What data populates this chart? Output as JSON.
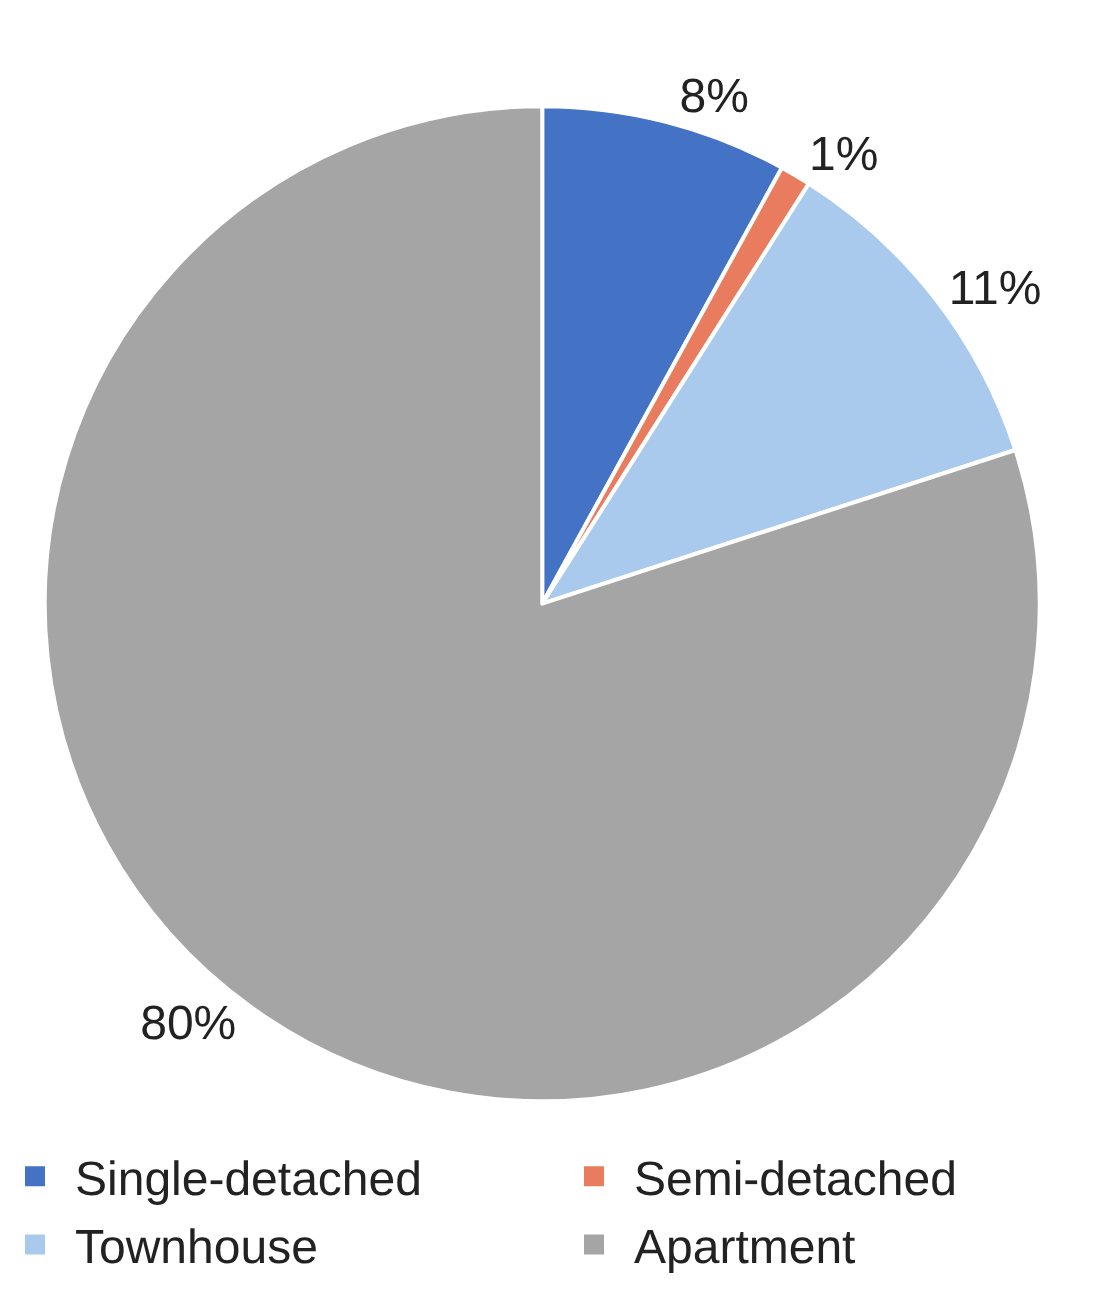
{
  "chart_data": {
    "type": "pie",
    "categories": [
      "Single-detached",
      "Semi-detached",
      "Townhouse",
      "Apartment"
    ],
    "values": [
      8,
      1,
      11,
      80
    ],
    "value_labels": [
      "8%",
      "1%",
      "11%",
      "80%"
    ],
    "colors": [
      "#4472c4",
      "#e97c5e",
      "#a9caec",
      "#a5a5a5"
    ],
    "legend": "bottom"
  }
}
